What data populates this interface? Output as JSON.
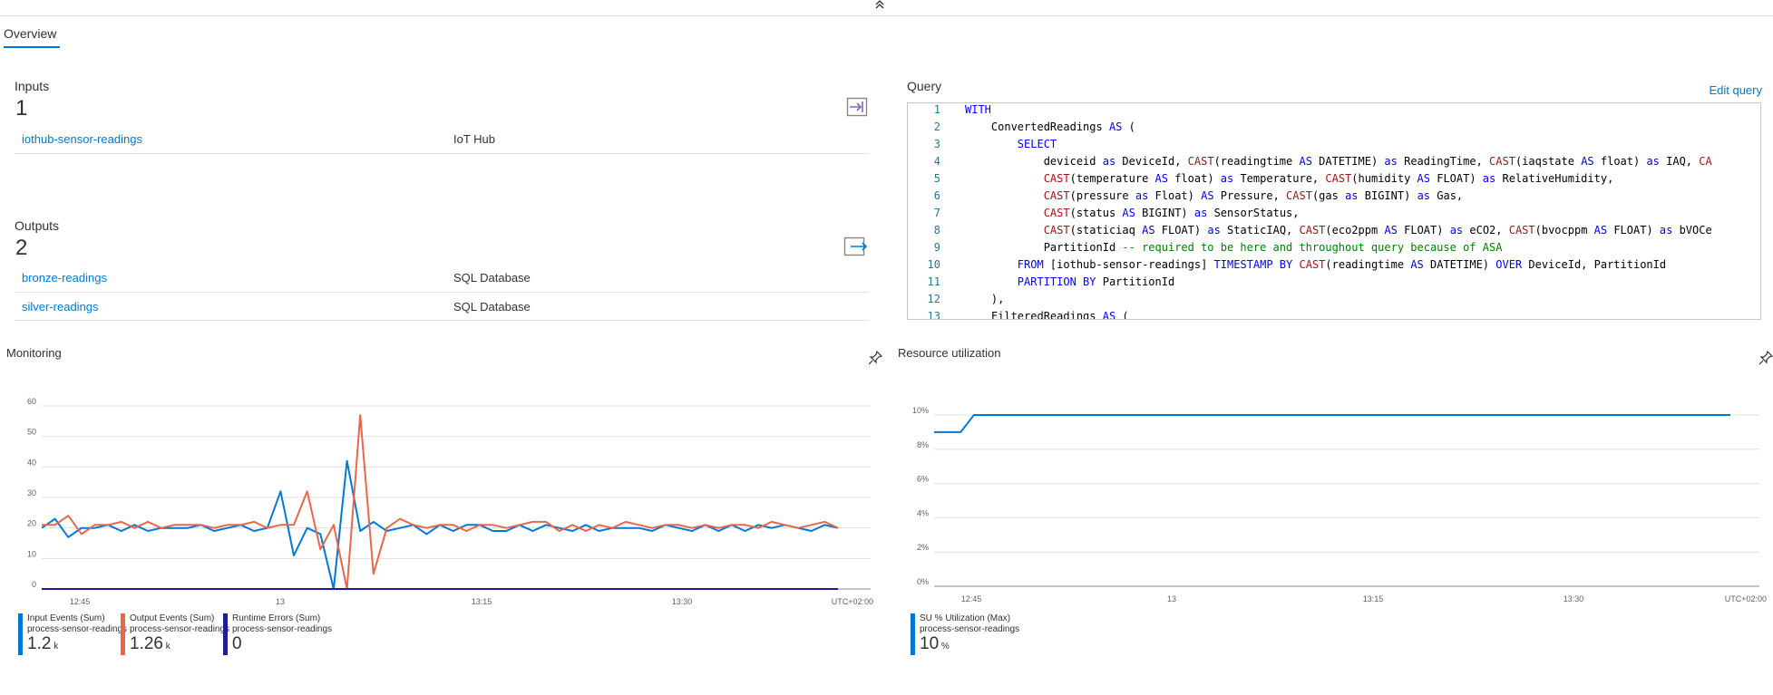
{
  "header": {
    "collapse_glyph": "⌃"
  },
  "tabs": [
    {
      "label": "Overview",
      "active": true
    }
  ],
  "inputs": {
    "title": "Inputs",
    "count": "1",
    "icon": "input-icon",
    "items": [
      {
        "name": "iothub-sensor-readings",
        "type": "IoT Hub"
      }
    ]
  },
  "outputs": {
    "title": "Outputs",
    "count": "2",
    "icon": "output-icon",
    "items": [
      {
        "name": "bronze-readings",
        "type": "SQL Database"
      },
      {
        "name": "silver-readings",
        "type": "SQL Database"
      }
    ]
  },
  "query": {
    "title": "Query",
    "edit_label": "Edit query",
    "lines": [
      [
        [
          "kw",
          "WITH"
        ]
      ],
      [
        [
          "t",
          "    ConvertedReadings "
        ],
        [
          "kw",
          "AS"
        ],
        [
          "t",
          " ("
        ]
      ],
      [
        [
          "t",
          "        "
        ],
        [
          "kw",
          "SELECT"
        ]
      ],
      [
        [
          "t",
          "            deviceid "
        ],
        [
          "kw",
          "as"
        ],
        [
          "t",
          " DeviceId, "
        ],
        [
          "fn",
          "CAST"
        ],
        [
          "t",
          "(readingtime "
        ],
        [
          "kw",
          "AS"
        ],
        [
          "t",
          " DATETIME) "
        ],
        [
          "kw",
          "as"
        ],
        [
          "t",
          " ReadingTime, "
        ],
        [
          "fn",
          "CAST"
        ],
        [
          "t",
          "(iaqstate "
        ],
        [
          "kw",
          "AS"
        ],
        [
          "t",
          " float) "
        ],
        [
          "kw",
          "as"
        ],
        [
          "t",
          " IAQ, "
        ],
        [
          "fn",
          "CA"
        ]
      ],
      [
        [
          "t",
          "            "
        ],
        [
          "fn",
          "CAST"
        ],
        [
          "t",
          "(temperature "
        ],
        [
          "kw",
          "AS"
        ],
        [
          "t",
          " float) "
        ],
        [
          "kw",
          "as"
        ],
        [
          "t",
          " Temperature, "
        ],
        [
          "fn",
          "CAST"
        ],
        [
          "t",
          "(humidity "
        ],
        [
          "kw",
          "AS"
        ],
        [
          "t",
          " FLOAT) "
        ],
        [
          "kw",
          "as"
        ],
        [
          "t",
          " RelativeHumidity,"
        ]
      ],
      [
        [
          "t",
          "            "
        ],
        [
          "fn",
          "CAST"
        ],
        [
          "t",
          "(pressure "
        ],
        [
          "kw",
          "as"
        ],
        [
          "t",
          " Float) "
        ],
        [
          "kw",
          "AS"
        ],
        [
          "t",
          " Pressure, "
        ],
        [
          "fn",
          "CAST"
        ],
        [
          "t",
          "(gas "
        ],
        [
          "kw",
          "as"
        ],
        [
          "t",
          " BIGINT) "
        ],
        [
          "kw",
          "as"
        ],
        [
          "t",
          " Gas,"
        ]
      ],
      [
        [
          "t",
          "            "
        ],
        [
          "fn",
          "CAST"
        ],
        [
          "t",
          "(status "
        ],
        [
          "kw",
          "AS"
        ],
        [
          "t",
          " BIGINT) "
        ],
        [
          "kw",
          "as"
        ],
        [
          "t",
          " SensorStatus,"
        ]
      ],
      [
        [
          "t",
          "            "
        ],
        [
          "fn",
          "CAST"
        ],
        [
          "t",
          "(staticiaq "
        ],
        [
          "kw",
          "AS"
        ],
        [
          "t",
          " FLOAT) "
        ],
        [
          "kw",
          "as"
        ],
        [
          "t",
          " StaticIAQ, "
        ],
        [
          "fn",
          "CAST"
        ],
        [
          "t",
          "(eco2ppm "
        ],
        [
          "kw",
          "AS"
        ],
        [
          "t",
          " FLOAT) "
        ],
        [
          "kw",
          "as"
        ],
        [
          "t",
          " eCO2, "
        ],
        [
          "fn",
          "CAST"
        ],
        [
          "t",
          "(bvocppm "
        ],
        [
          "kw",
          "AS"
        ],
        [
          "t",
          " FLOAT) "
        ],
        [
          "kw",
          "as"
        ],
        [
          "t",
          " bVOCe"
        ]
      ],
      [
        [
          "t",
          "            PartitionId "
        ],
        [
          "cm",
          "-- required to be here and throughout query because of ASA"
        ]
      ],
      [
        [
          "t",
          "        "
        ],
        [
          "kw",
          "FROM"
        ],
        [
          "t",
          " [iothub-sensor-readings] "
        ],
        [
          "kw",
          "TIMESTAMP BY"
        ],
        [
          "t",
          " "
        ],
        [
          "fn",
          "CAST"
        ],
        [
          "t",
          "(readingtime "
        ],
        [
          "kw",
          "AS"
        ],
        [
          "t",
          " DATETIME) "
        ],
        [
          "kw",
          "OVER"
        ],
        [
          "t",
          " DeviceId, PartitionId"
        ]
      ],
      [
        [
          "t",
          "        "
        ],
        [
          "kw",
          "PARTITION BY"
        ],
        [
          "t",
          " PartitionId"
        ]
      ],
      [
        [
          "t",
          "    ),"
        ]
      ],
      [
        [
          "t",
          "    FilteredReadings "
        ],
        [
          "kw",
          "AS"
        ],
        [
          "t",
          " ("
        ]
      ]
    ]
  },
  "monitoring": {
    "title": "Monitoring",
    "pin_icon": "pin-icon",
    "timezone": "UTC+02:00",
    "legend": [
      {
        "name": "Input Events (Sum)",
        "sub": "process-sensor-readings",
        "value": "1.2",
        "unit": "k",
        "color": "#0078d4"
      },
      {
        "name": "Output Events (Sum)",
        "sub": "process-sensor-readings",
        "value": "1.26",
        "unit": "k",
        "color": "#e8674a"
      },
      {
        "name": "Runtime Errors (Sum)",
        "sub": "process-sensor-readings",
        "value": "0",
        "unit": "",
        "color": "#1d1d8f"
      }
    ]
  },
  "resource": {
    "title": "Resource utilization",
    "pin_icon": "pin-icon",
    "timezone": "UTC+02:00",
    "legend": [
      {
        "name": "SU % Utilization (Max)",
        "sub": "process-sensor-readings",
        "value": "10",
        "unit": "%",
        "color": "#0078d4"
      }
    ]
  },
  "chart_data": [
    {
      "type": "line",
      "title": "Monitoring",
      "x_ticks": [
        "12:45",
        "13",
        "13:15",
        "13:30"
      ],
      "y_ticks": [
        "0",
        "10",
        "20",
        "30",
        "40",
        "50",
        "60"
      ],
      "ylim": [
        0,
        60
      ],
      "grid": true,
      "legend_position": "bottom",
      "series": [
        {
          "name": "Input Events (Sum)",
          "color": "#0078d4",
          "values": [
            20,
            23,
            17,
            20,
            20,
            21,
            19,
            21,
            19,
            20,
            20,
            20,
            21,
            19,
            20,
            21,
            19,
            20,
            32,
            11,
            20,
            18,
            0,
            42,
            19,
            22,
            19,
            20,
            21,
            18,
            21,
            19,
            21,
            21,
            19,
            19,
            21,
            19,
            21,
            20,
            19,
            21,
            19,
            20,
            20,
            20,
            19,
            21,
            20,
            19,
            21,
            19,
            21,
            19,
            21,
            20,
            21,
            20,
            19,
            21,
            20
          ]
        },
        {
          "name": "Output Events (Sum)",
          "color": "#e8674a",
          "values": [
            21,
            21,
            24,
            18,
            21,
            21,
            22,
            20,
            22,
            20,
            21,
            21,
            21,
            20,
            21,
            21,
            22,
            20,
            21,
            21,
            32,
            13,
            21,
            0,
            57,
            5,
            20,
            23,
            21,
            20,
            21,
            21,
            19,
            21,
            21,
            20,
            21,
            22,
            22,
            19,
            21,
            19,
            21,
            20,
            22,
            21,
            20,
            21,
            21,
            20,
            21,
            20,
            21,
            21,
            20,
            22,
            21,
            20,
            21,
            22,
            20
          ]
        },
        {
          "name": "Runtime Errors (Sum)",
          "color": "#1d1d8f",
          "values": [
            0,
            0,
            0,
            0,
            0,
            0,
            0,
            0,
            0,
            0,
            0,
            0,
            0,
            0,
            0,
            0,
            0,
            0,
            0,
            0,
            0,
            0,
            0,
            0,
            0,
            0,
            0,
            0,
            0,
            0,
            0,
            0,
            0,
            0,
            0,
            0,
            0,
            0,
            0,
            0,
            0,
            0,
            0,
            0,
            0,
            0,
            0,
            0,
            0,
            0,
            0,
            0,
            0,
            0,
            0,
            0,
            0,
            0,
            0,
            0,
            0
          ]
        }
      ]
    },
    {
      "type": "line",
      "title": "Resource utilization",
      "x_ticks": [
        "12:45",
        "13",
        "13:15",
        "13:30"
      ],
      "y_ticks": [
        "0%",
        "2%",
        "4%",
        "6%",
        "8%",
        "10%"
      ],
      "ylim": [
        0,
        10
      ],
      "grid": true,
      "legend_position": "bottom",
      "series": [
        {
          "name": "SU % Utilization (Max)",
          "color": "#0078d4",
          "values": [
            9,
            9,
            9,
            10,
            10,
            10,
            10,
            10,
            10,
            10,
            10,
            10,
            10,
            10,
            10,
            10,
            10,
            10,
            10,
            10,
            10,
            10,
            10,
            10,
            10,
            10,
            10,
            10,
            10,
            10,
            10,
            10,
            10,
            10,
            10,
            10,
            10,
            10,
            10,
            10,
            10,
            10,
            10,
            10,
            10,
            10,
            10,
            10,
            10,
            10,
            10,
            10,
            10,
            10,
            10,
            10,
            10,
            10,
            10,
            10,
            10
          ]
        }
      ]
    }
  ]
}
